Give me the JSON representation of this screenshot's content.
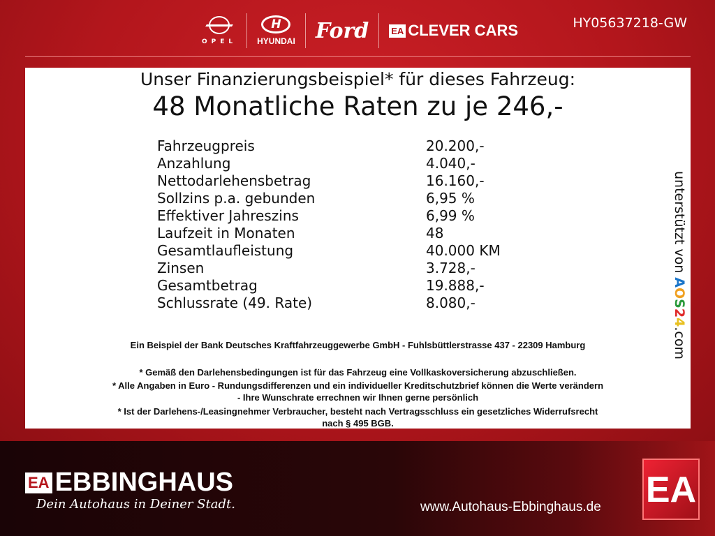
{
  "header": {
    "brands": [
      "OPEL",
      "HYUNDAI",
      "Ford",
      "CLEVER CARS"
    ],
    "clever_badge": "EA",
    "vehicle_code": "HY05637218-GW"
  },
  "offer": {
    "title": "Unser Finanzierungsbeispiel* für dieses Fahrzeug:",
    "headline": "48 Monatliche Raten zu je 246,-",
    "rows": [
      {
        "label": "Fahrzeugpreis",
        "value": "20.200,-"
      },
      {
        "label": "Anzahlung",
        "value": "4.040,-"
      },
      {
        "label": "Nettodarlehensbetrag",
        "value": "16.160,-"
      },
      {
        "label": "Sollzins p.a. gebunden",
        "value": "6,95 %"
      },
      {
        "label": "Effektiver Jahreszins",
        "value": "6,99 %"
      },
      {
        "label": "Laufzeit in Monaten",
        "value": "48"
      },
      {
        "label": "Gesamtlaufleistung",
        "value": "40.000 KM"
      },
      {
        "label": "Zinsen",
        "value": "3.728,-"
      },
      {
        "label": "Gesamtbetrag",
        "value": "19.888,-"
      },
      {
        "label": "Schlussrate (49. Rate)",
        "value": "8.080,-"
      }
    ],
    "bank": "Ein Beispiel der Bank Deutsches Kraftfahrzeuggewerbe GmbH - Fuhlsbüttlerstrasse 437 - 22309 Hamburg",
    "notes": [
      "* Gemäß den Darlehensbedingungen ist für das Fahrzeug eine Vollkaskoversicherung abzuschließen.",
      "* Alle Angaben in Euro - Rundungsdifferenzen und ein individueller Kreditschutzbrief können die Werte verändern",
      "- Ihre Wunschrate errechnen wir Ihnen gerne persönlich",
      "* Ist der Darlehens-/Leasingnehmer Verbraucher, besteht nach Vertragsschluss ein gesetzliches Widerrufsrecht",
      "nach § 495 BGB."
    ],
    "supported_by": "unterstützt von",
    "aos": [
      "A",
      "O",
      "S",
      "2",
      "4"
    ],
    "aos_suffix": ".com"
  },
  "footer": {
    "badge": "EA",
    "brand": "EBBINGHAUS",
    "slogan": "Dein Autohaus in Deiner Stadt.",
    "url": "www.Autohaus-Ebbinghaus.de"
  }
}
